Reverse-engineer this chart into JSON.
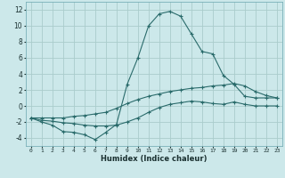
{
  "xlabel": "Humidex (Indice chaleur)",
  "background_color": "#cce8ea",
  "grid_color": "#aacccc",
  "line_color": "#2a6b6b",
  "x_data": [
    0,
    1,
    2,
    3,
    4,
    5,
    6,
    7,
    8,
    9,
    10,
    11,
    12,
    13,
    14,
    15,
    16,
    17,
    18,
    19,
    20,
    21,
    22,
    23
  ],
  "series": {
    "main": [
      -1.5,
      -2.0,
      -2.4,
      -3.2,
      -3.3,
      -3.6,
      -4.2,
      -3.3,
      -2.3,
      2.7,
      6.0,
      10.0,
      11.5,
      11.8,
      11.2,
      9.0,
      6.8,
      6.5,
      3.8,
      2.7,
      1.2,
      1.0,
      1.0,
      1.0
    ],
    "upper": [
      -1.5,
      -1.5,
      -1.5,
      -1.5,
      -1.3,
      -1.2,
      -1.0,
      -0.8,
      -0.3,
      0.3,
      0.8,
      1.2,
      1.5,
      1.8,
      2.0,
      2.2,
      2.3,
      2.5,
      2.6,
      2.8,
      2.5,
      1.8,
      1.3,
      1.0
    ],
    "lower": [
      -1.5,
      -1.8,
      -1.9,
      -2.1,
      -2.2,
      -2.4,
      -2.5,
      -2.5,
      -2.4,
      -2.0,
      -1.5,
      -0.8,
      -0.2,
      0.2,
      0.4,
      0.6,
      0.5,
      0.3,
      0.2,
      0.5,
      0.2,
      0.0,
      0.0,
      0.0
    ]
  },
  "xlim": [
    -0.5,
    23.5
  ],
  "ylim": [
    -5,
    13
  ],
  "yticks": [
    -4,
    -2,
    0,
    2,
    4,
    6,
    8,
    10,
    12
  ]
}
